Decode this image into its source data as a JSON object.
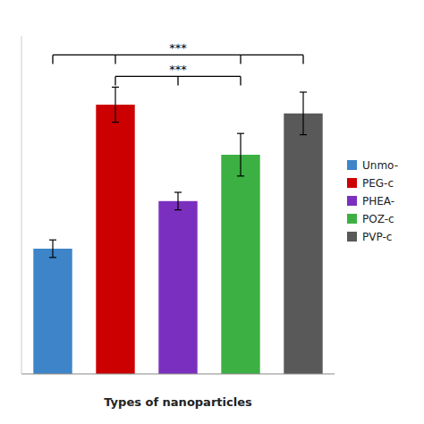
{
  "chart_data": {
    "type": "bar",
    "categories": [
      "Unmo-",
      "PEG-c",
      "PHEA-",
      "POZ-c",
      "PVP-c"
    ],
    "values": [
      100,
      215,
      138,
      175,
      208
    ],
    "errors": [
      7,
      14,
      7,
      17,
      17
    ],
    "colors": [
      "#3d85c8",
      "#cc0000",
      "#7b2fbe",
      "#3cb043",
      "#595959"
    ],
    "xlabel": "Types of nanoparticles",
    "ylim": [
      0,
      270
    ],
    "yticks": [],
    "tick_labels": false,
    "grid": false,
    "legend": "right",
    "annotations": [
      {
        "label": "***",
        "from": "Unmo-",
        "to": "PVP-c",
        "ticks": [
          "Unmo-",
          "PEG-c",
          "POZ-c",
          "PVP-c"
        ]
      },
      {
        "label": "***",
        "from": "PEG-c",
        "to": "POZ-c",
        "ticks": [
          "PEG-c",
          "PHEA-",
          "POZ-c"
        ]
      }
    ]
  }
}
